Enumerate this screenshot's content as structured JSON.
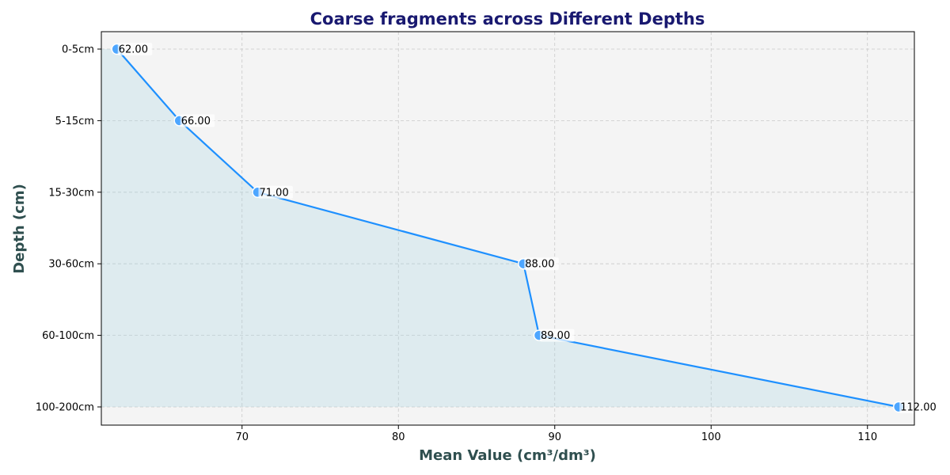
{
  "chart_data": {
    "type": "line",
    "title": "Coarse fragments across Different Depths",
    "xlabel": "Mean Value (cm³/dm³)",
    "ylabel": "Depth (cm)",
    "categories": [
      "0-5cm",
      "5-15cm",
      "15-30cm",
      "30-60cm",
      "60-100cm",
      "100-200cm"
    ],
    "values": [
      62,
      66,
      71,
      88,
      89,
      112
    ],
    "data_labels": [
      "62.00",
      "66.00",
      "71.00",
      "88.00",
      "89.00",
      "112.00"
    ],
    "xlim": [
      61,
      113
    ],
    "xticks": [
      70,
      80,
      90,
      100,
      110
    ],
    "orientation": "horizontal-values, categorical-y",
    "grid": true,
    "fill_area": true,
    "colors": {
      "line": "#1e90ff",
      "marker": "#4da6ff",
      "fill": "#add8e6",
      "background": "#f4f4f4",
      "title": "#191970",
      "axis_label": "#2f4f4f"
    }
  }
}
